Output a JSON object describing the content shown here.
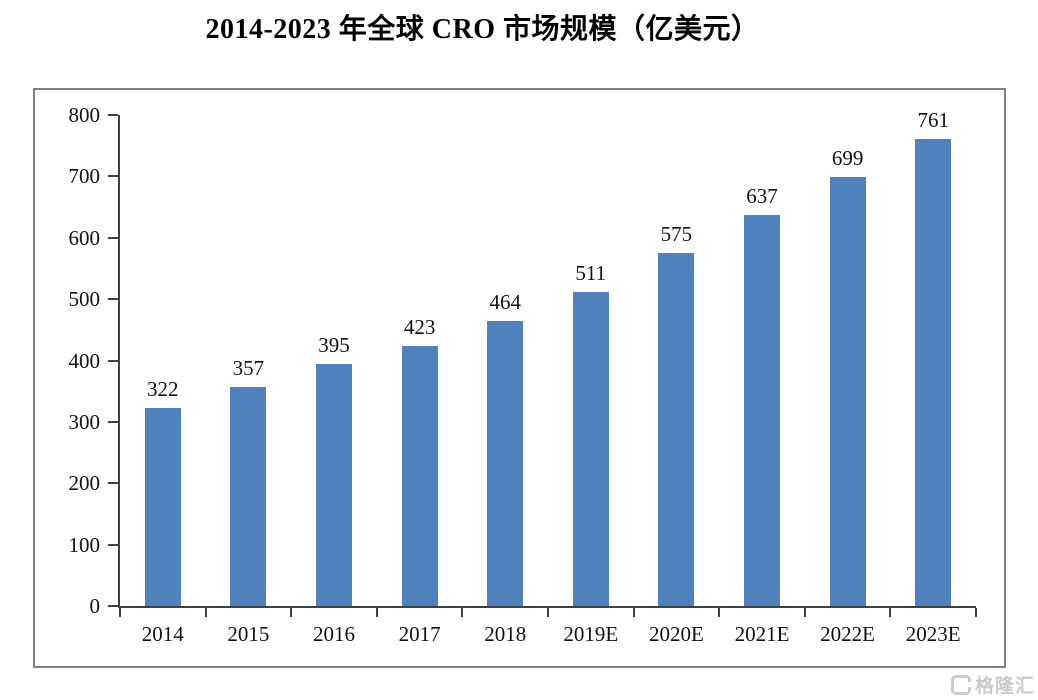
{
  "title": "2014-2023 年全球 CRO 市场规模（亿美元）",
  "watermark": {
    "brand": "格隆汇"
  },
  "colors": {
    "bar": "#4F81BD",
    "axis": "#404040",
    "frame_border": "#7f7f7f",
    "text": "#111111",
    "watermark": "#c7ccd1",
    "background": "#ffffff"
  },
  "chart_data": {
    "type": "bar",
    "title": "2014-2023 年全球 CRO 市场规模（亿美元）",
    "categories": [
      "2014",
      "2015",
      "2016",
      "2017",
      "2018",
      "2019E",
      "2020E",
      "2021E",
      "2022E",
      "2023E"
    ],
    "values": [
      322,
      357,
      395,
      423,
      464,
      511,
      575,
      637,
      699,
      761
    ],
    "xlabel": "",
    "ylabel": "",
    "ylim": [
      0,
      800
    ],
    "yticks": [
      0,
      100,
      200,
      300,
      400,
      500,
      600,
      700,
      800
    ],
    "grid": false,
    "legend": null,
    "bar_color": "#4F81BD",
    "value_labels_shown": true
  }
}
